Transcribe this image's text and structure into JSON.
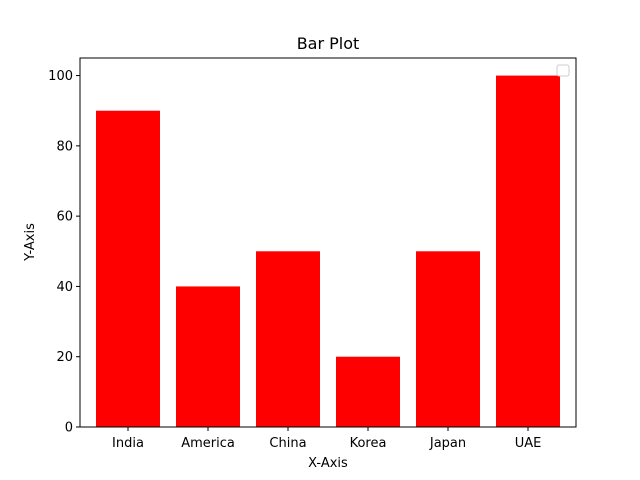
{
  "chart_data": {
    "type": "bar",
    "title": "Bar Plot",
    "xlabel": "X-Axis",
    "ylabel": "Y-Axis",
    "categories": [
      "India",
      "America",
      "China",
      "Korea",
      "Japan",
      "UAE"
    ],
    "values": [
      90,
      40,
      50,
      20,
      50,
      100
    ],
    "ylim": [
      0,
      105
    ],
    "yticks": [
      0,
      20,
      40,
      60,
      80,
      100
    ],
    "bar_color": "#ff0000",
    "grid": false,
    "legend": {
      "placement": "top-right",
      "entries": []
    }
  }
}
